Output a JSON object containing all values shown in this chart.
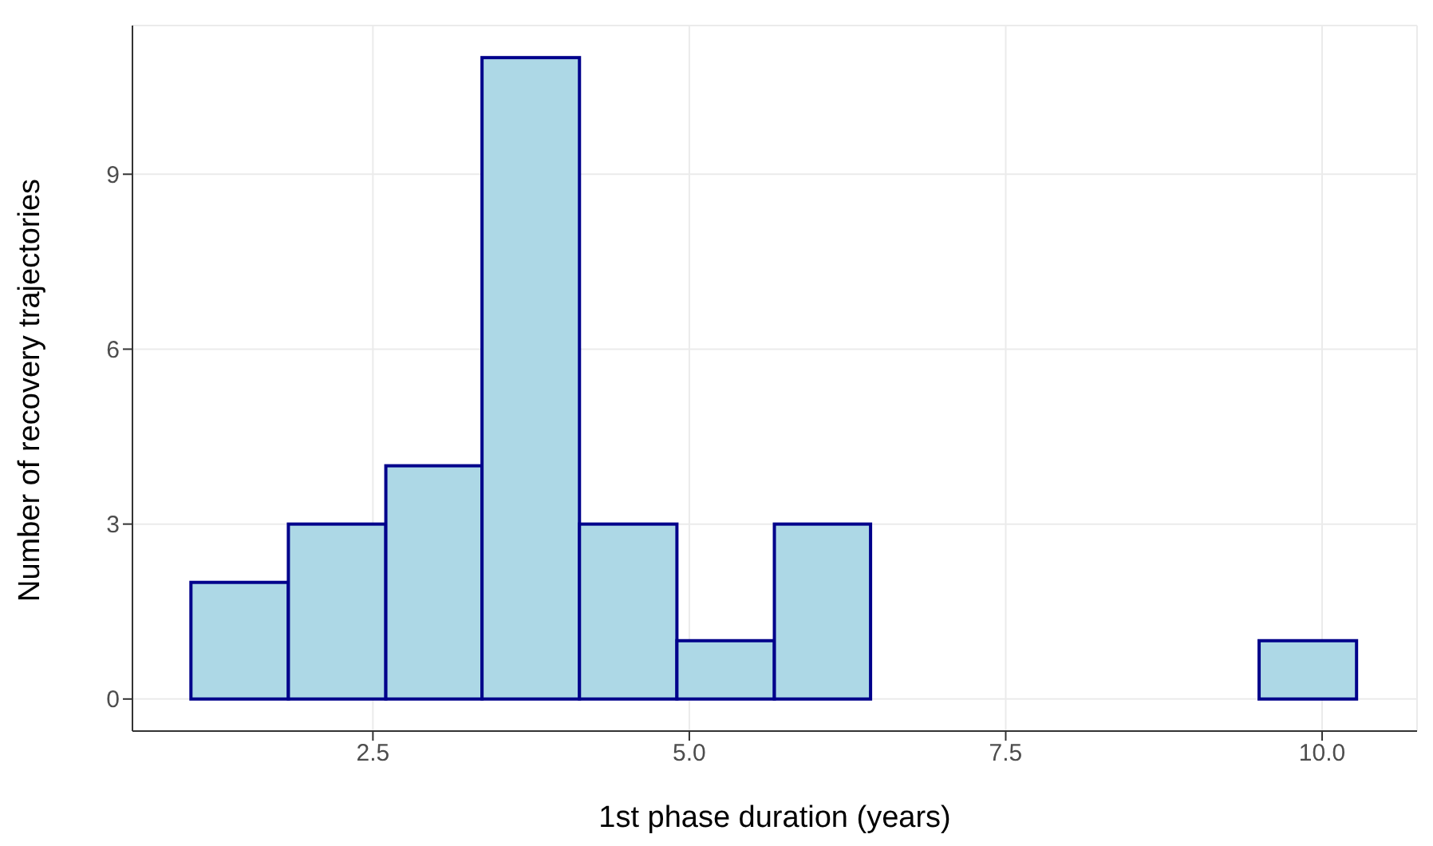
{
  "chart_data": {
    "type": "histogram",
    "xlabel": "1st phase duration (years)",
    "ylabel": "Number of recovery trajectories",
    "bins": [
      1.06,
      1.83,
      2.6,
      3.36,
      4.13,
      4.9,
      5.67,
      6.43,
      9.5,
      10.27
    ],
    "values": [
      2,
      3,
      4,
      11,
      3,
      1,
      3,
      0,
      1
    ],
    "color": "#add8e6",
    "xlim": [
      0.6,
      10.75
    ],
    "xticks": [
      {
        "value": 2.5,
        "label": "2.5"
      },
      {
        "value": 5,
        "label": "5.0"
      },
      {
        "value": 7.5,
        "label": "7.5"
      },
      {
        "value": 10,
        "label": "10.0"
      }
    ],
    "ylim": [
      -0.55,
      11.55
    ],
    "yticks": [
      0,
      3,
      6,
      9
    ],
    "grid": true
  }
}
